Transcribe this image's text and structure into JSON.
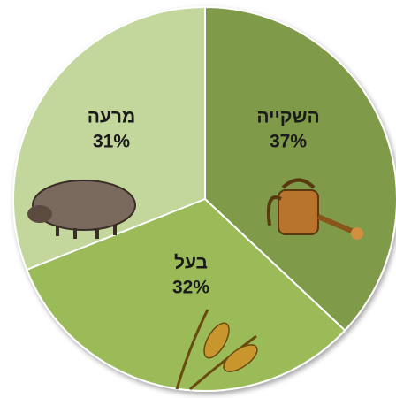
{
  "chart_data": {
    "type": "pie",
    "categories": [
      "השקייה",
      "בעל",
      "מרעה"
    ],
    "values": [
      37,
      32,
      31
    ],
    "value_labels": [
      "37%",
      "32%",
      "31%"
    ],
    "colors": [
      "#7f9a48",
      "#9bbb59",
      "#c3d69b"
    ]
  }
}
